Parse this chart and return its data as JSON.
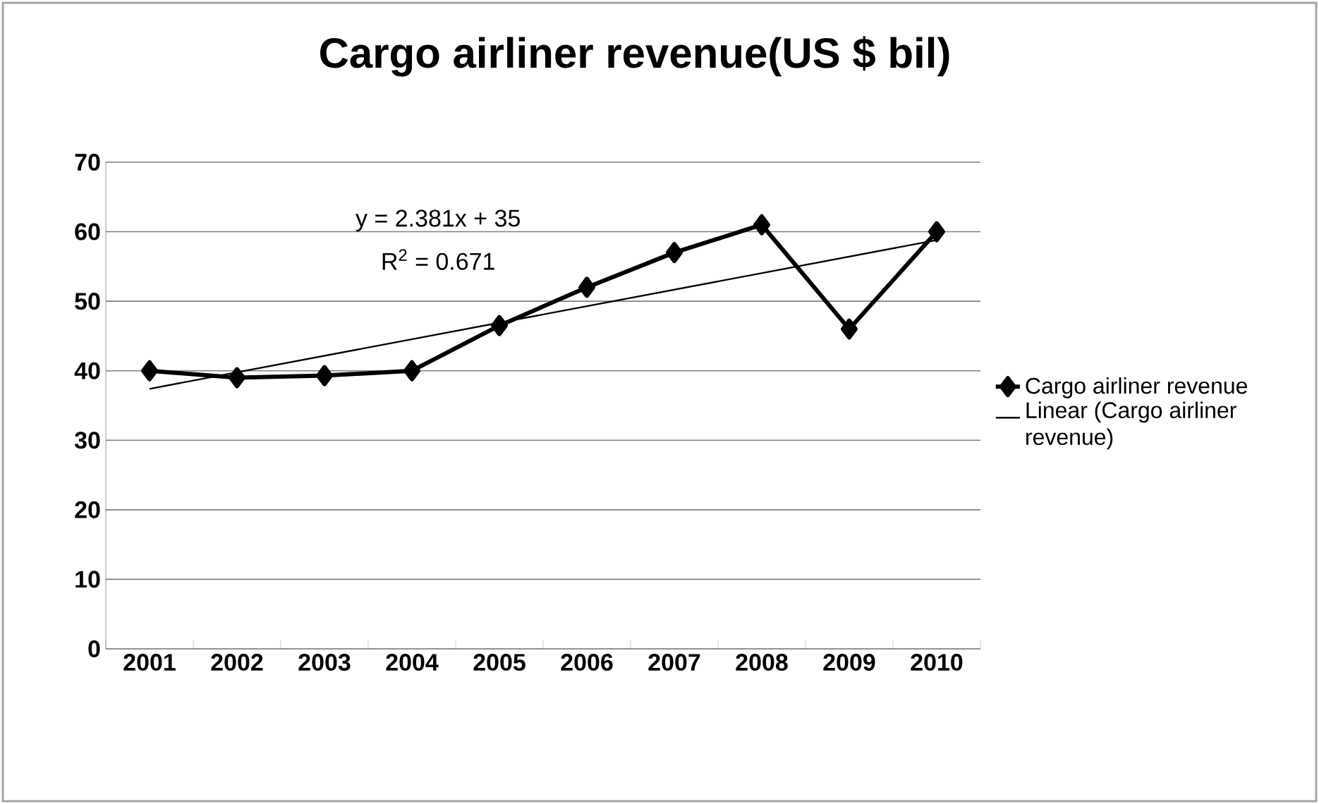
{
  "chart_data": {
    "type": "line",
    "title": "Cargo airliner revenue(US $ bil)",
    "categories": [
      "2001",
      "2002",
      "2003",
      "2004",
      "2005",
      "2006",
      "2007",
      "2008",
      "2009",
      "2010"
    ],
    "series": [
      {
        "name": "Cargo airliner revenue",
        "color": "#000000",
        "marker": "diamond",
        "values": [
          40,
          39,
          39.3,
          40,
          46.5,
          52,
          57,
          61,
          46,
          60
        ]
      },
      {
        "name": "Linear (Cargo airliner revenue)",
        "color": "#000000",
        "type": "line",
        "marker": "none",
        "values": [
          37.4,
          null,
          null,
          null,
          null,
          null,
          null,
          null,
          null,
          58.8
        ]
      }
    ],
    "ylim": [
      0,
      70
    ],
    "yticks": [
      0,
      10,
      20,
      30,
      40,
      50,
      60,
      70
    ],
    "grid": "y",
    "legend": "right",
    "annotations": [
      "y = 2.381x + 35",
      "R$^{2}$ = 0.671"
    ]
  }
}
